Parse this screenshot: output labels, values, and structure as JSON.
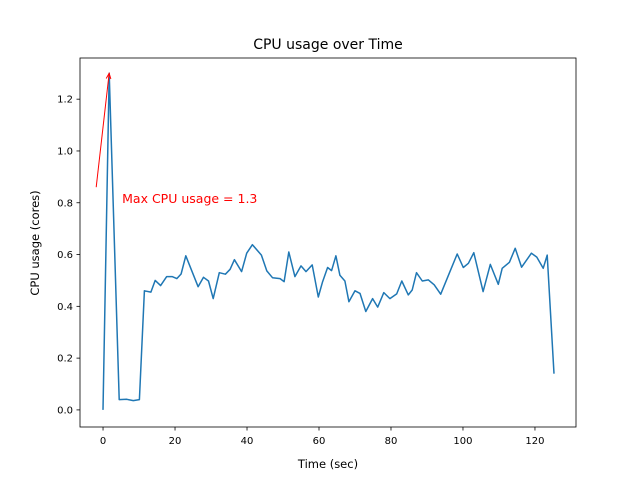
{
  "chart_data": {
    "type": "line",
    "title": "CPU usage over Time",
    "xlabel": "Time (sec)",
    "ylabel": "CPU usage (cores)",
    "xlim": [
      -6.4,
      131.4
    ],
    "ylim": [
      -0.066,
      1.359
    ],
    "xticks": [
      0,
      20,
      40,
      60,
      80,
      100,
      120
    ],
    "xtick_labels": [
      "0",
      "20",
      "40",
      "60",
      "80",
      "100",
      "120"
    ],
    "yticks": [
      0.0,
      0.2,
      0.4,
      0.6,
      0.8,
      1.0,
      1.2
    ],
    "ytick_labels": [
      "0.0",
      "0.2",
      "0.4",
      "0.6",
      "0.8",
      "1.0",
      "1.2"
    ],
    "grid": false,
    "series": [
      {
        "name": "CPU usage",
        "color": "#1f77b4",
        "x": [
          0,
          1.7,
          4.5,
          6.6,
          8.4,
          10.1,
          11.5,
          13.3,
          14.5,
          16,
          17.7,
          19.2,
          20.5,
          21.7,
          23,
          26.4,
          27.9,
          29.3,
          30.6,
          32.3,
          34,
          35.3,
          36.5,
          38.5,
          39.9,
          41.5,
          44,
          45.5,
          47.1,
          49.2,
          50.3,
          51.6,
          53.3,
          55,
          56.4,
          58.1,
          59.8,
          61,
          62.4,
          63.5,
          64.7,
          65.8,
          67.2,
          68.3,
          70,
          71.4,
          73,
          74.9,
          76.3,
          78,
          79.7,
          81.6,
          83,
          84.8,
          85.9,
          87.1,
          88.7,
          90.4,
          92,
          93.8,
          96.2,
          98.4,
          100.1,
          101.5,
          103,
          105.6,
          107.6,
          109.8,
          110.9,
          112.9,
          114.5,
          116.3,
          119,
          120.5,
          122.3,
          123.4,
          125.3
        ],
        "y": [
          0.0,
          1.3,
          0.04,
          0.041,
          0.036,
          0.04,
          0.46,
          0.455,
          0.5,
          0.48,
          0.515,
          0.515,
          0.507,
          0.525,
          0.595,
          0.476,
          0.512,
          0.498,
          0.43,
          0.53,
          0.524,
          0.543,
          0.58,
          0.534,
          0.605,
          0.638,
          0.598,
          0.537,
          0.51,
          0.507,
          0.495,
          0.61,
          0.515,
          0.556,
          0.534,
          0.56,
          0.436,
          0.495,
          0.55,
          0.538,
          0.595,
          0.52,
          0.498,
          0.418,
          0.46,
          0.45,
          0.38,
          0.43,
          0.397,
          0.453,
          0.43,
          0.448,
          0.498,
          0.444,
          0.463,
          0.53,
          0.498,
          0.502,
          0.483,
          0.447,
          0.528,
          0.602,
          0.55,
          0.566,
          0.607,
          0.457,
          0.562,
          0.485,
          0.547,
          0.57,
          0.624,
          0.551,
          0.605,
          0.59,
          0.547,
          0.598,
          0.14
        ]
      }
    ],
    "annotations": [
      {
        "text": "Max CPU usage = 1.3",
        "xy": [
          1.7,
          1.3
        ],
        "xytext": [
          -2.5,
          0.815
        ],
        "arrow_tail": [
          -1.9,
          0.86
        ],
        "color": "#ff0000"
      }
    ]
  }
}
